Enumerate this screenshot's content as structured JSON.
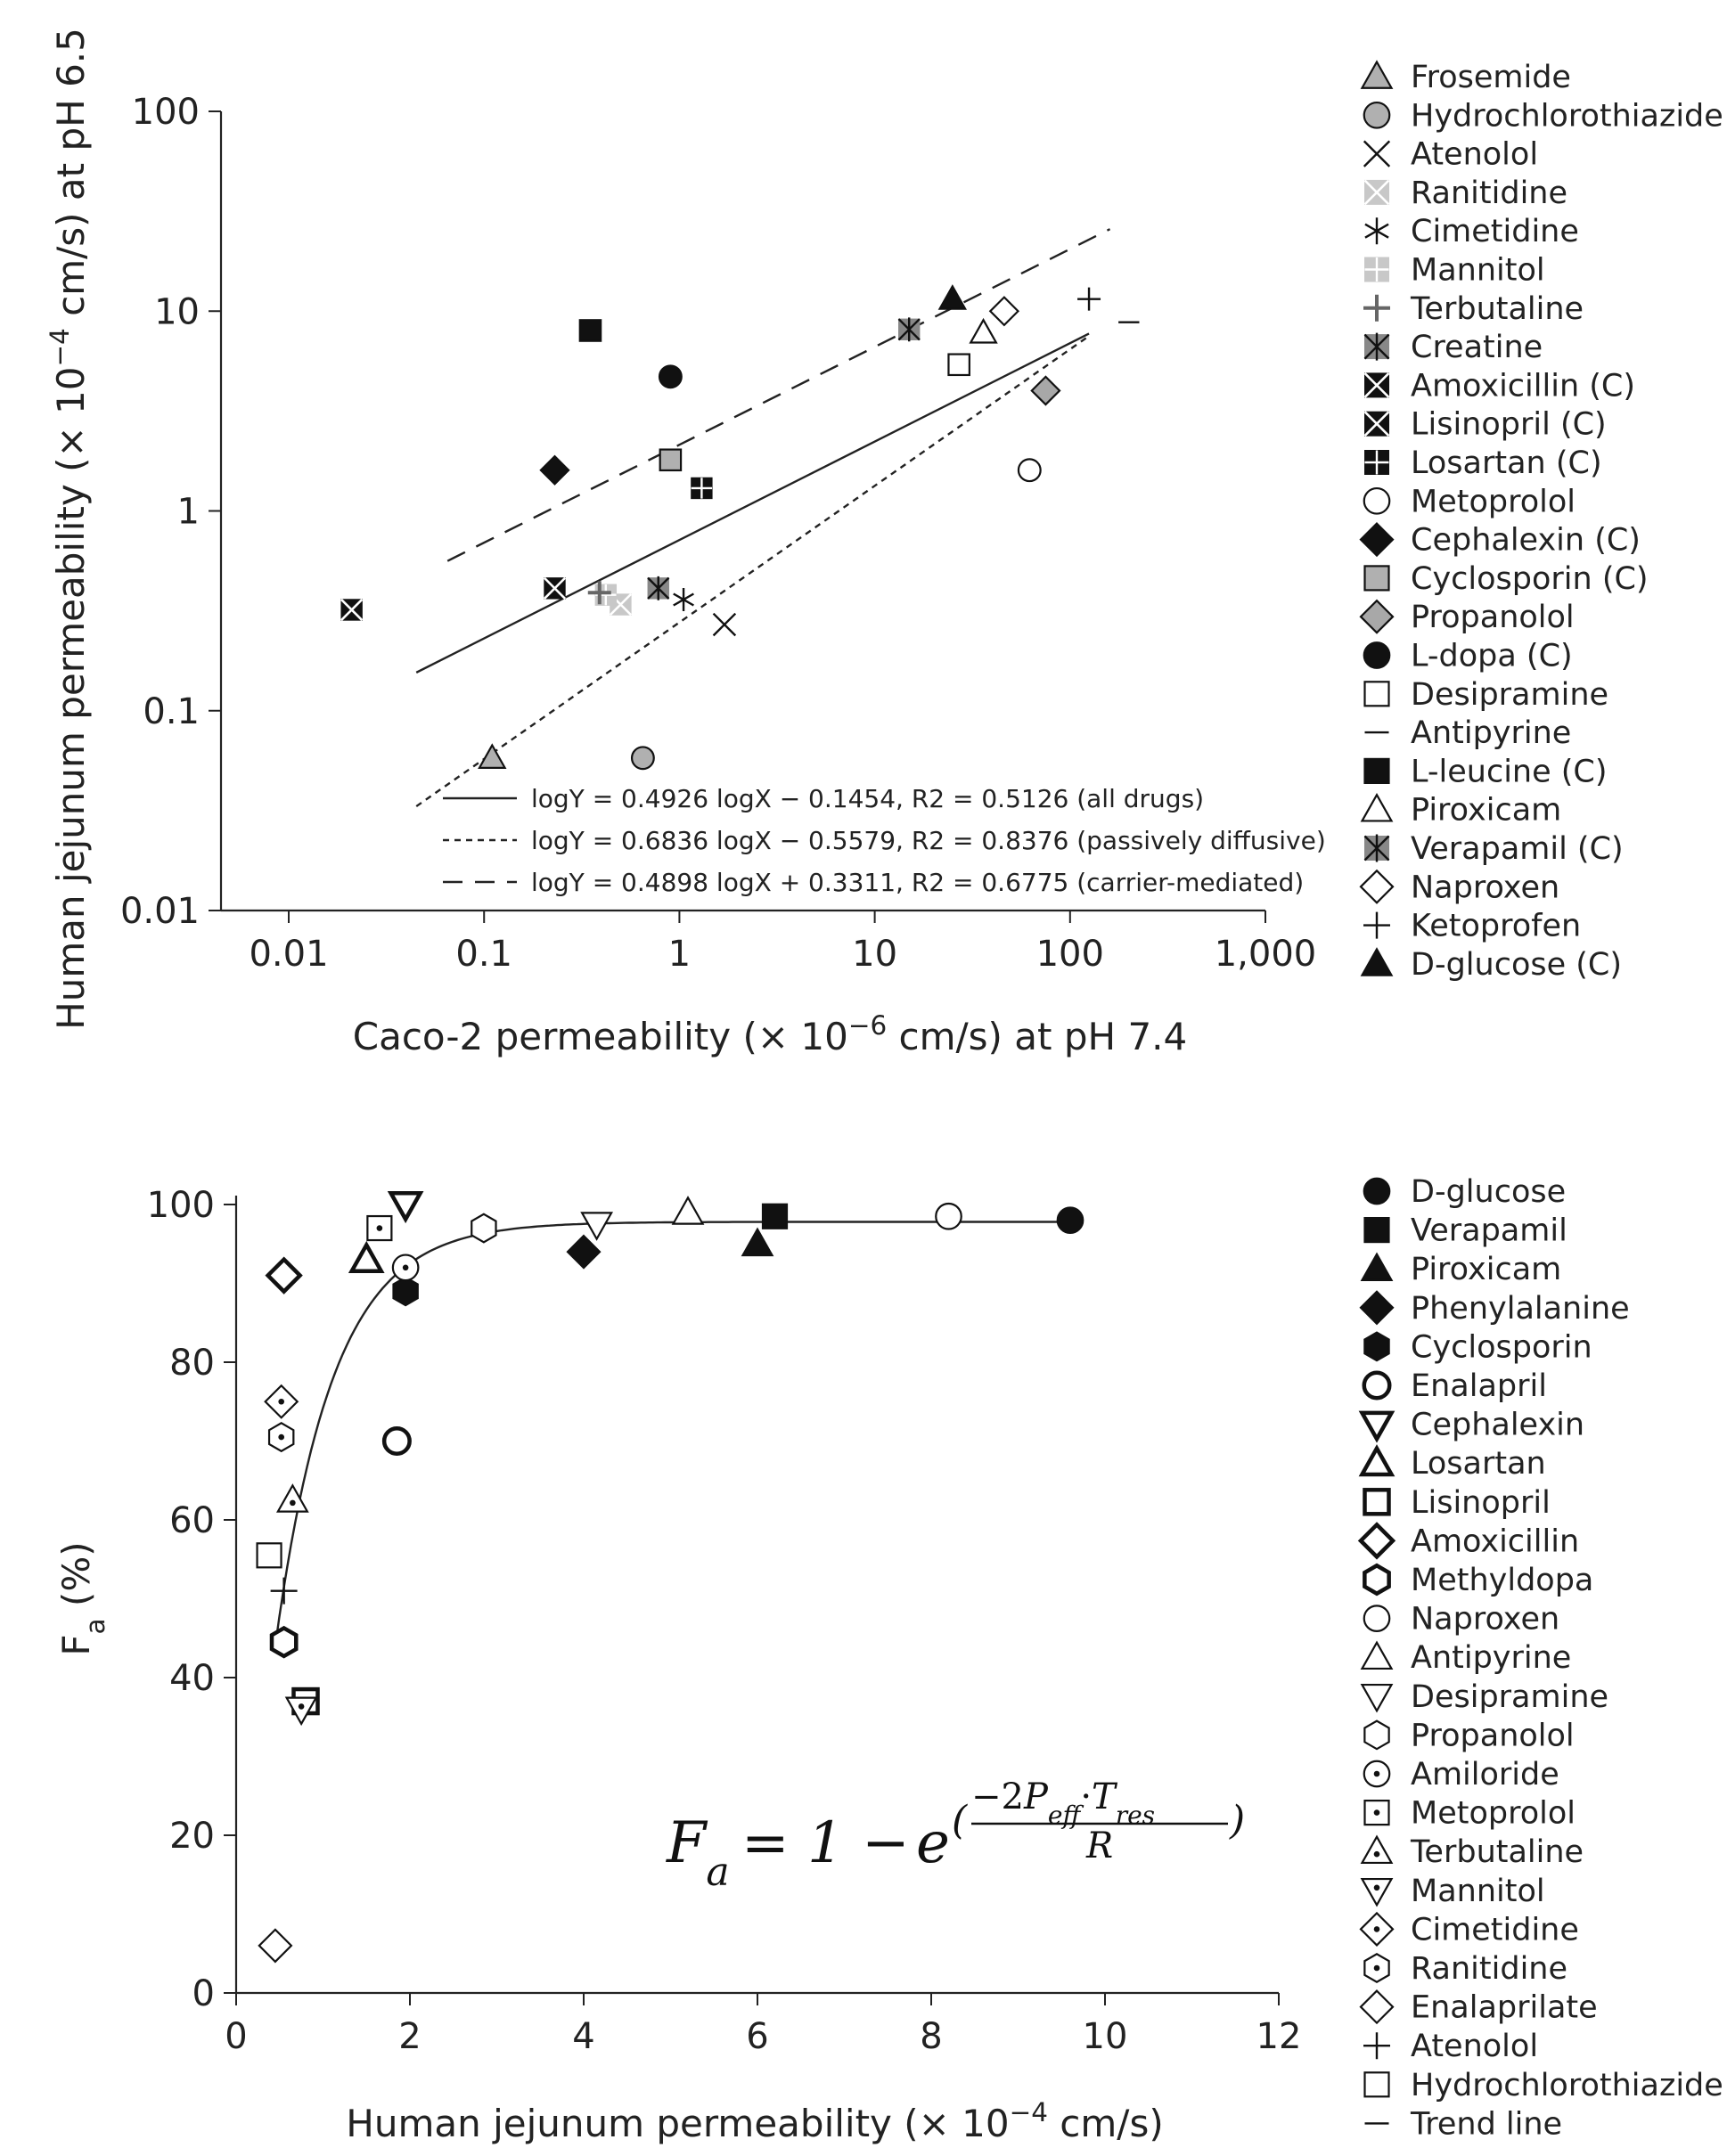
{
  "chart_data": [
    {
      "type": "scatter",
      "xlabel": "Caco-2 permeability (× 10⁻⁶ cm/s) at pH 7.4",
      "ylabel": "Human jejunum permeability (× 10⁻⁴ cm/s) at pH 6.5",
      "x_scale": "log",
      "y_scale": "log",
      "xlim": [
        0.0045,
        1000
      ],
      "ylim": [
        0.01,
        100
      ],
      "x_ticks": [
        {
          "value": 0.01,
          "label": "0.01"
        },
        {
          "value": 0.1,
          "label": "0.1"
        },
        {
          "value": 1,
          "label": "1"
        },
        {
          "value": 10,
          "label": "10"
        },
        {
          "value": 100,
          "label": "100"
        },
        {
          "value": 1000,
          "label": "1,000"
        }
      ],
      "y_ticks": [
        {
          "value": 0.01,
          "label": "0.01"
        },
        {
          "value": 0.1,
          "label": "0.1"
        },
        {
          "value": 1,
          "label": "1"
        },
        {
          "value": 10,
          "label": "10"
        },
        {
          "value": 100,
          "label": "100"
        }
      ],
      "legend_position": "right",
      "series": [
        {
          "name": "Frosemide",
          "marker": "triangle",
          "fill": "#b0b0b0",
          "x": 0.11,
          "y": 0.058
        },
        {
          "name": "Hydrochlorothiazide",
          "marker": "circle",
          "fill": "#b0b0b0",
          "x": 0.65,
          "y": 0.058
        },
        {
          "name": "Atenolol",
          "marker": "x",
          "fill": "none",
          "x": 1.7,
          "y": 0.27
        },
        {
          "name": "Ranitidine",
          "marker": "x-square",
          "fill": "#c8c8c8",
          "x": 0.5,
          "y": 0.34
        },
        {
          "name": "Cimetidine",
          "marker": "asterisk",
          "fill": "none",
          "x": 1.05,
          "y": 0.36
        },
        {
          "name": "Mannitol",
          "marker": "grid-square",
          "fill": "#c8c8c8",
          "x": 0.42,
          "y": 0.38
        },
        {
          "name": "Terbutaline",
          "marker": "plus-bold",
          "fill": "#666666",
          "x": 0.39,
          "y": 0.39
        },
        {
          "name": "Creatine",
          "marker": "asterisk-square",
          "fill": "#888888",
          "x": 0.78,
          "y": 0.41
        },
        {
          "name": "Amoxicillin (C)",
          "marker": "x-square",
          "fill": "#111111",
          "x": 0.021,
          "y": 0.32
        },
        {
          "name": "Lisinopril (C)",
          "marker": "x-square",
          "fill": "#111111",
          "x": 0.23,
          "y": 0.41
        },
        {
          "name": "Losartan (C)",
          "marker": "grid-square",
          "fill": "#111111",
          "x": 1.3,
          "y": 1.3
        },
        {
          "name": "Metoprolol",
          "marker": "circle",
          "fill": "#ffffff",
          "x": 62,
          "y": 1.6
        },
        {
          "name": "Cephalexin (C)",
          "marker": "diamond",
          "fill": "#111111",
          "x": 0.23,
          "y": 1.6
        },
        {
          "name": "Cyclosporin (C)",
          "marker": "square",
          "fill": "#b0b0b0",
          "x": 0.9,
          "y": 1.8
        },
        {
          "name": "Propanolol",
          "marker": "diamond",
          "fill": "#a8a8a8",
          "x": 75,
          "y": 4.0
        },
        {
          "name": "L-dopa (C)",
          "marker": "circle",
          "fill": "#111111",
          "x": 0.9,
          "y": 4.7
        },
        {
          "name": "Desipramine",
          "marker": "square",
          "fill": "#ffffff",
          "x": 27,
          "y": 5.4
        },
        {
          "name": "Antipyrine",
          "marker": "dash",
          "fill": "none",
          "x": 200,
          "y": 8.8
        },
        {
          "name": "L-leucine (C)",
          "marker": "square",
          "fill": "#111111",
          "x": 0.35,
          "y": 8.0
        },
        {
          "name": "Piroxicam",
          "marker": "triangle",
          "fill": "#ffffff",
          "x": 36,
          "y": 7.8
        },
        {
          "name": "Verapamil (C)",
          "marker": "asterisk-square",
          "fill": "#888888",
          "x": 15,
          "y": 8.1
        },
        {
          "name": "Naproxen",
          "marker": "diamond",
          "fill": "#ffffff",
          "x": 46,
          "y": 10
        },
        {
          "name": "Ketoprofen",
          "marker": "plus",
          "fill": "none",
          "x": 125,
          "y": 11.5
        },
        {
          "name": "D-glucose (C)",
          "marker": "triangle",
          "fill": "#111111",
          "x": 25,
          "y": 11.5
        }
      ],
      "fits": [
        {
          "label": "logY = 0.4926 logX − 0.1454, R2 = 0.5126 (all drugs)",
          "style": "solid",
          "slope": 0.4926,
          "intercept": -0.1454,
          "x_range": [
            0.045,
            125
          ]
        },
        {
          "label": "logY = 0.6836 logX − 0.5579, R2 = 0.8376 (passively diffusive)",
          "style": "dotted",
          "slope": 0.6836,
          "intercept": -0.5579,
          "x_range": [
            0.045,
            125
          ]
        },
        {
          "label": "logY = 0.4898 logX + 0.3311, R2 = 0.6775 (carrier-mediated)",
          "style": "dashed",
          "slope": 0.4898,
          "intercept": 0.3311,
          "x_range": [
            0.065,
            160
          ]
        }
      ]
    },
    {
      "type": "scatter",
      "xlabel": "Human jejunum permeability (× 10⁻⁴ cm/s)",
      "ylabel": "Fa (%)",
      "xlim": [
        0,
        12
      ],
      "ylim": [
        0,
        100
      ],
      "x_ticks": [
        0,
        2,
        4,
        6,
        8,
        10,
        12
      ],
      "y_ticks": [
        0,
        20,
        40,
        60,
        80,
        100
      ],
      "legend_position": "right",
      "formula": "Fa = 1 − e^(−2·Peff·Tres / R)",
      "series": [
        {
          "name": "D-glucose",
          "marker": "circle",
          "fill": "#111111",
          "x": 9.6,
          "y": 98
        },
        {
          "name": "Verapamil",
          "marker": "square",
          "fill": "#111111",
          "x": 6.2,
          "y": 98.5
        },
        {
          "name": "Piroxicam",
          "marker": "triangle",
          "fill": "#111111",
          "x": 6.0,
          "y": 95
        },
        {
          "name": "Phenylalanine",
          "marker": "diamond",
          "fill": "#111111",
          "x": 4.0,
          "y": 94
        },
        {
          "name": "Cyclosporin",
          "marker": "hexagon",
          "fill": "#111111",
          "x": 1.95,
          "y": 89
        },
        {
          "name": "Enalapril",
          "marker": "circle-thick",
          "fill": "#ffffff",
          "x": 1.85,
          "y": 70
        },
        {
          "name": "Cephalexin",
          "marker": "triangle-down-thick",
          "fill": "#ffffff",
          "x": 1.95,
          "y": 100
        },
        {
          "name": "Losartan",
          "marker": "triangle-thick",
          "fill": "#ffffff",
          "x": 1.5,
          "y": 93
        },
        {
          "name": "Lisinopril",
          "marker": "square-thick",
          "fill": "#ffffff",
          "x": 0.8,
          "y": 37
        },
        {
          "name": "Amoxicillin",
          "marker": "diamond-thick",
          "fill": "#ffffff",
          "x": 0.55,
          "y": 91
        },
        {
          "name": "Methyldopa",
          "marker": "hexagon-thick",
          "fill": "#ffffff",
          "x": 0.55,
          "y": 44.5
        },
        {
          "name": "Naproxen",
          "marker": "circle",
          "fill": "#ffffff",
          "x": 8.2,
          "y": 98.5
        },
        {
          "name": "Antipyrine",
          "marker": "triangle",
          "fill": "#ffffff",
          "x": 5.2,
          "y": 99
        },
        {
          "name": "Desipramine",
          "marker": "triangle-down",
          "fill": "#ffffff",
          "x": 4.15,
          "y": 97.5
        },
        {
          "name": "Propanolol",
          "marker": "hexagon",
          "fill": "#ffffff",
          "x": 2.85,
          "y": 97
        },
        {
          "name": "Amiloride",
          "marker": "circle-dot",
          "fill": "#ffffff",
          "x": 1.95,
          "y": 92
        },
        {
          "name": "Metoprolol",
          "marker": "square-dot",
          "fill": "#ffffff",
          "x": 1.65,
          "y": 97
        },
        {
          "name": "Terbutaline",
          "marker": "triangle-dot",
          "fill": "#ffffff",
          "x": 0.65,
          "y": 62.5
        },
        {
          "name": "Mannitol",
          "marker": "triangle-down-dot",
          "fill": "#ffffff",
          "x": 0.75,
          "y": 36
        },
        {
          "name": "Cimetidine",
          "marker": "diamond-dot",
          "fill": "#ffffff",
          "x": 0.52,
          "y": 75
        },
        {
          "name": "Ranitidine",
          "marker": "hexagon-dot",
          "fill": "#ffffff",
          "x": 0.52,
          "y": 70.5
        },
        {
          "name": "Enalaprilate",
          "marker": "diamond",
          "fill": "#ffffff",
          "x": 0.45,
          "y": 6
        },
        {
          "name": "Atenolol",
          "marker": "plus",
          "fill": "none",
          "x": 0.55,
          "y": 51
        },
        {
          "name": "Hydrochlorothiazide",
          "marker": "square",
          "fill": "#ffffff",
          "x": 0.38,
          "y": 55.5
        },
        {
          "name": "Trend line",
          "marker": "dash",
          "fill": "none"
        }
      ],
      "trend": {
        "type": "exponential",
        "y_max": 97.8,
        "x0": 0.45,
        "y0": 44,
        "k": 1.5,
        "x_range": [
          0.45,
          9.6
        ]
      }
    }
  ]
}
